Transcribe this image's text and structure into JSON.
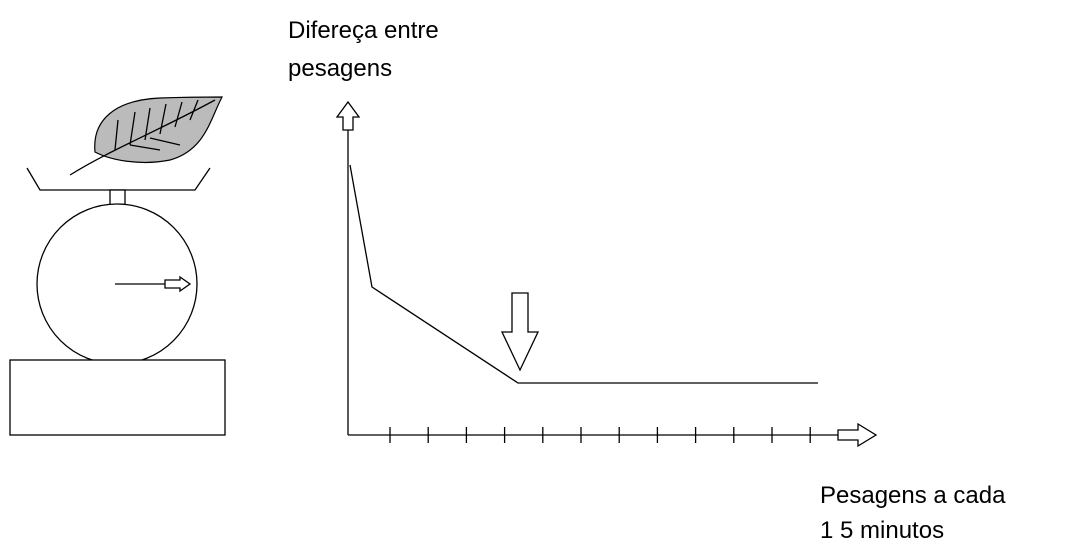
{
  "y_axis_label": {
    "lines": [
      "Difereça entre",
      "pesagens"
    ]
  },
  "x_axis_label": {
    "lines": [
      "Pesagens a cada",
      "1 5 minutos"
    ]
  }
}
